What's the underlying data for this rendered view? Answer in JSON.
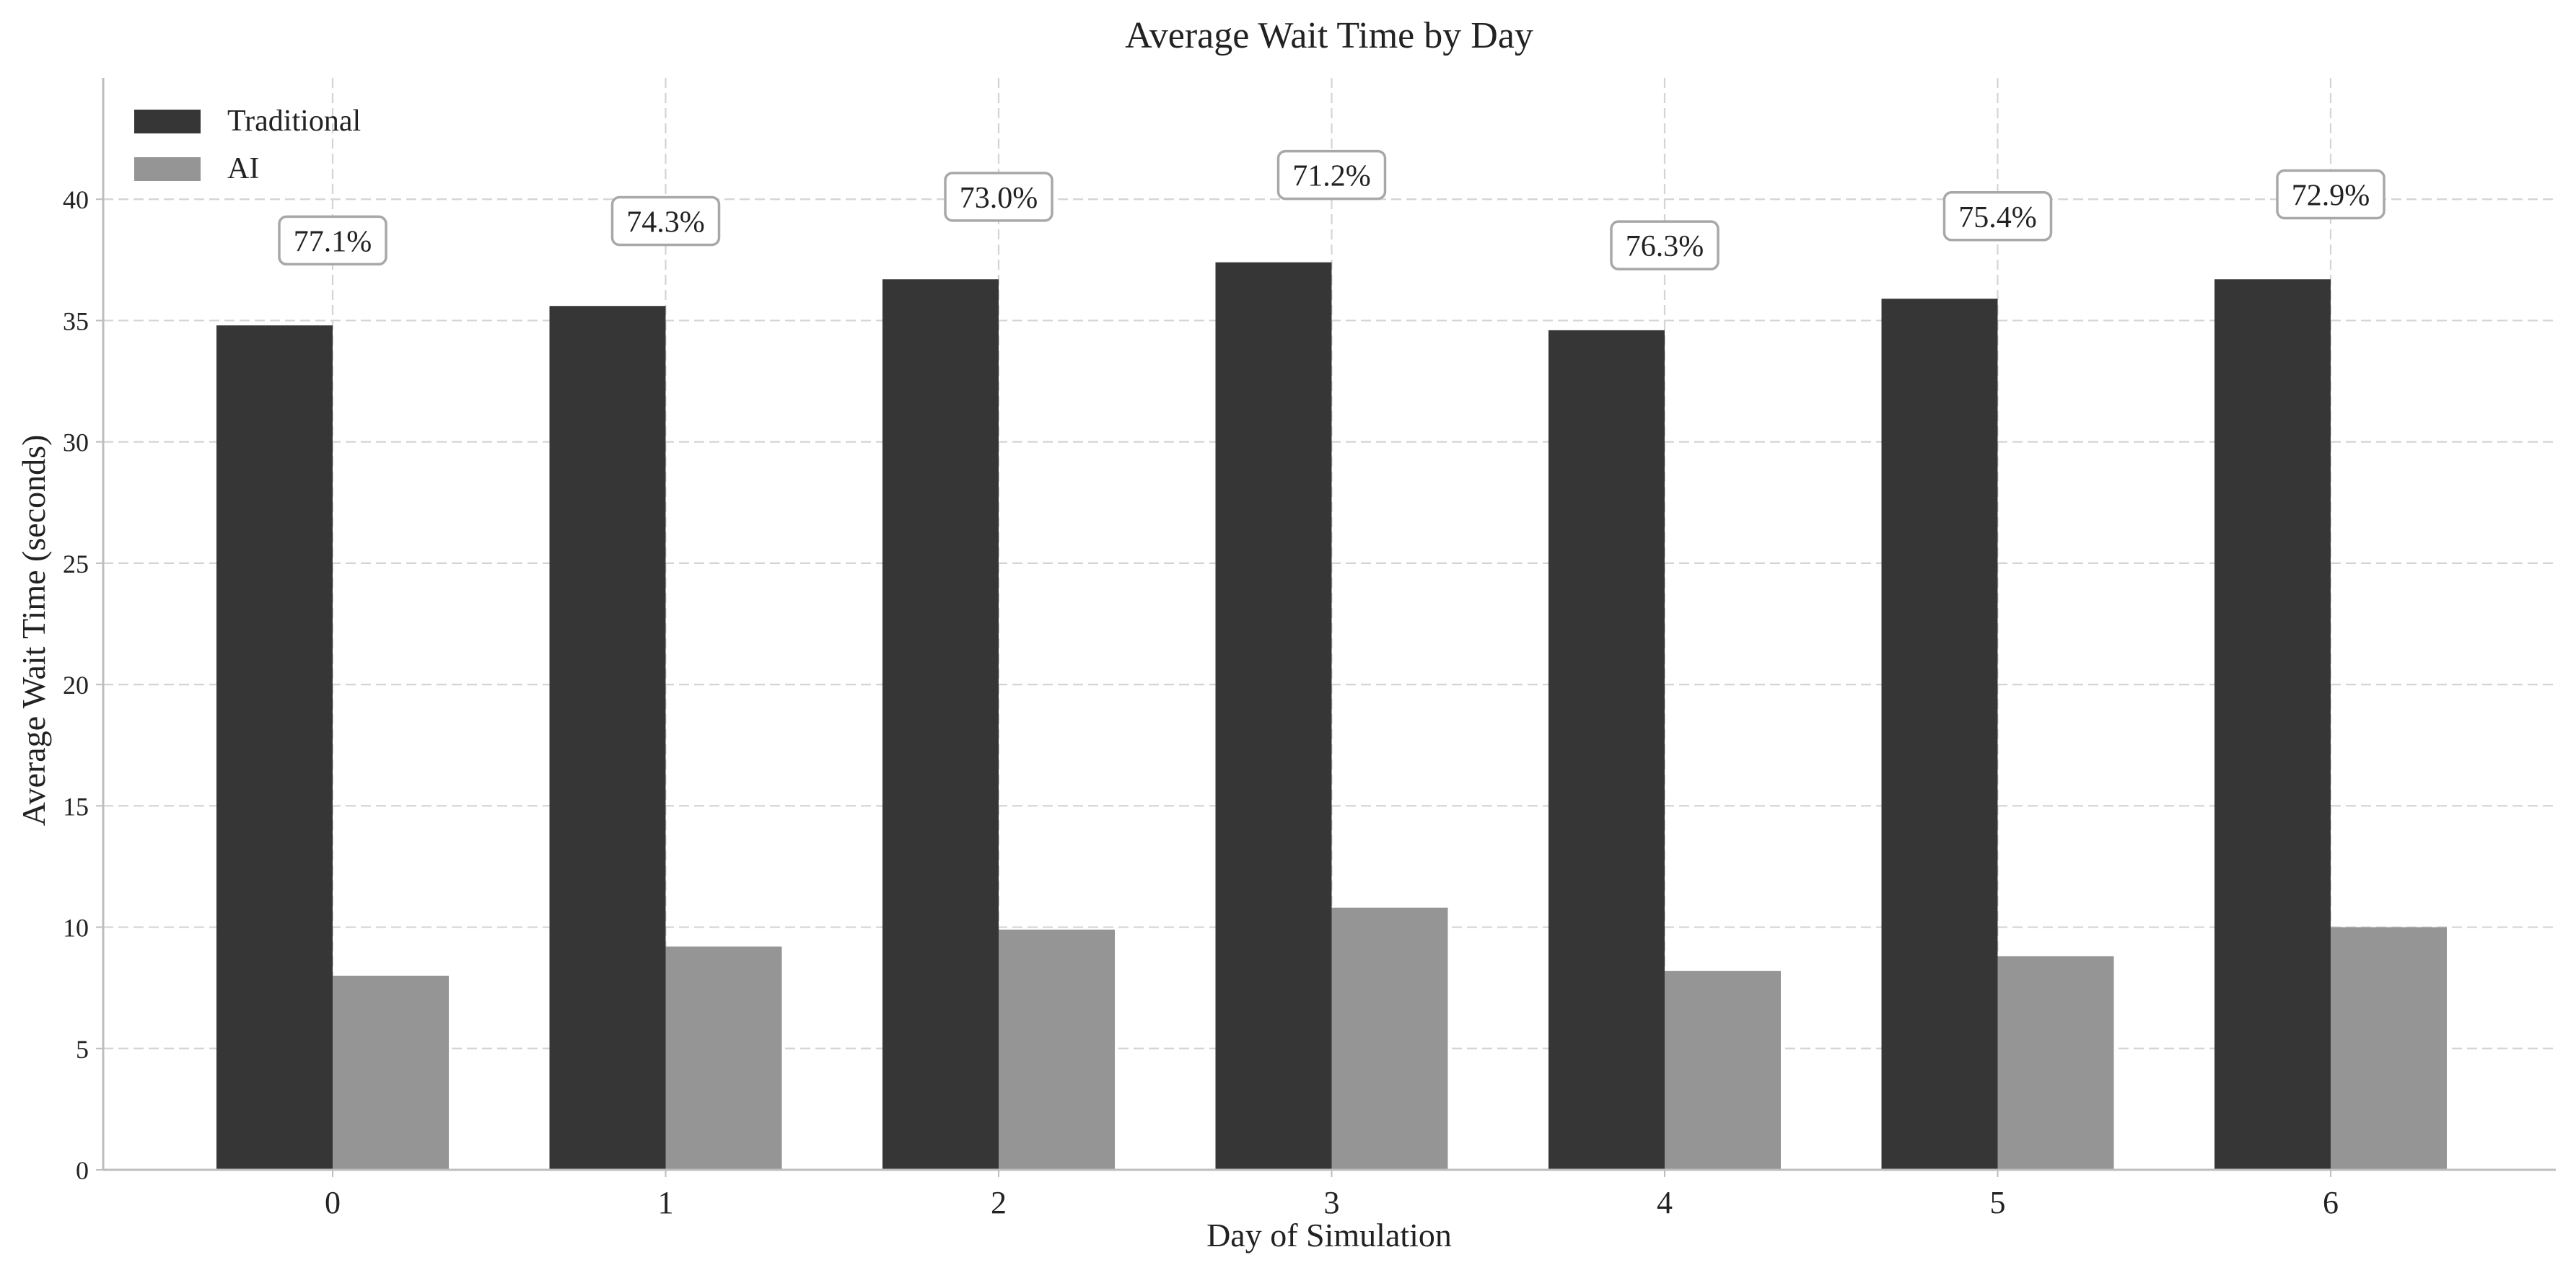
{
  "chart_data": {
    "type": "bar",
    "title": "Average Wait Time by Day",
    "xlabel": "Day of Simulation",
    "ylabel": "Average Wait Time (seconds)",
    "categories": [
      "0",
      "1",
      "2",
      "3",
      "4",
      "5",
      "6"
    ],
    "ylim": [
      0,
      45
    ],
    "yticks": [
      0,
      5,
      10,
      15,
      20,
      25,
      30,
      35,
      40
    ],
    "grid": true,
    "legend_position": "top-left",
    "series": [
      {
        "name": "Traditional",
        "color": "#363636",
        "values": [
          34.8,
          35.6,
          36.7,
          37.4,
          34.6,
          35.9,
          36.7
        ]
      },
      {
        "name": "AI",
        "color": "#959595",
        "values": [
          8.0,
          9.2,
          9.9,
          10.8,
          8.2,
          8.8,
          10.0
        ]
      }
    ],
    "annotations": [
      "77.1%",
      "74.3%",
      "73.0%",
      "71.2%",
      "76.3%",
      "75.4%",
      "72.9%"
    ],
    "annotation_y": [
      38.3,
      39.1,
      40.1,
      41.0,
      38.1,
      39.3,
      40.2
    ]
  }
}
